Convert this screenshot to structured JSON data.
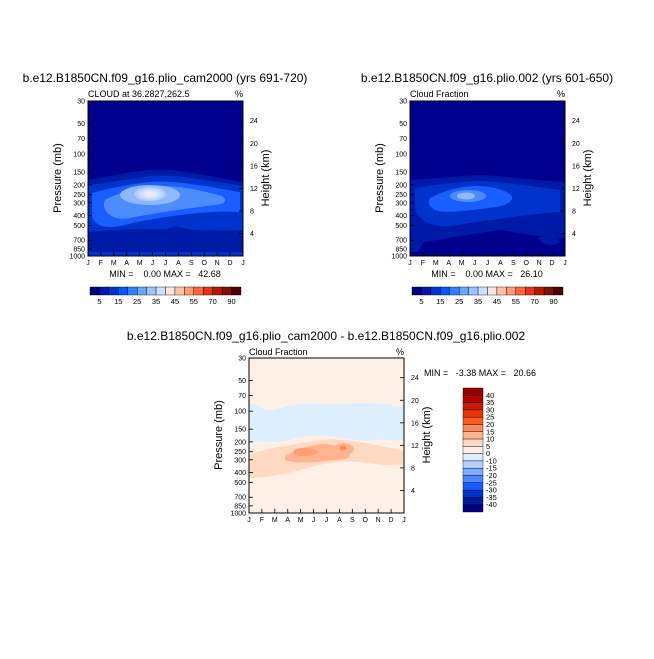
{
  "chart_data": [
    {
      "type": "heatmap",
      "title": "b.e12.B1850CN.f09_g16.plio_cam2000 (yrs 691-720)",
      "subtitle": "CLOUD at 36.2827,262.5",
      "unit": "%",
      "ylabel": "Pressure (mb)",
      "y2label": "Height (km)",
      "x_ticks": [
        "J",
        "F",
        "M",
        "A",
        "M",
        "J",
        "J",
        "A",
        "S",
        "O",
        "N",
        "D",
        "J"
      ],
      "y_ticks": [
        "30",
        "50",
        "70",
        "100",
        "150",
        "200",
        "250",
        "300",
        "400",
        "500",
        "700",
        "850",
        "1000"
      ],
      "y2_ticks": [
        "24",
        "20",
        "16",
        "12",
        "8",
        "4"
      ],
      "stats": "MIN =    0.00 MAX =   42.68",
      "min": 0.0,
      "max": 42.68,
      "peak": {
        "month": "Jul",
        "pressure_mb": 200,
        "value": 42.68
      },
      "colorbar_labels": [
        "5",
        "15",
        "25",
        "35",
        "45",
        "55",
        "70",
        "90"
      ],
      "levels": [
        5,
        10,
        15,
        20,
        25,
        30,
        35,
        40,
        45,
        50,
        55,
        60,
        70,
        80,
        90
      ],
      "colors": [
        "#00007f",
        "#0019a6",
        "#0033cc",
        "#0059ff",
        "#3380ff",
        "#66a6ff",
        "#99c2ff",
        "#cce0ff",
        "#ffe5d9",
        "#ffc2a6",
        "#ff9973",
        "#ff6640",
        "#e63319",
        "#b31a00",
        "#801000",
        "#500000"
      ]
    },
    {
      "type": "heatmap",
      "title": "b.e12.B1850CN.f09_g16.plio.002 (yrs 601-650)",
      "subtitle": "Cloud Fraction",
      "unit": "%",
      "ylabel": "Pressure (mb)",
      "y2label": "Height (km)",
      "x_ticks": [
        "J",
        "F",
        "M",
        "A",
        "M",
        "J",
        "J",
        "A",
        "S",
        "O",
        "N",
        "D",
        "J"
      ],
      "y_ticks": [
        "30",
        "50",
        "70",
        "100",
        "150",
        "200",
        "250",
        "300",
        "400",
        "500",
        "700",
        "850",
        "1000"
      ],
      "y2_ticks": [
        "24",
        "20",
        "16",
        "12",
        "8",
        "4"
      ],
      "stats": "MIN =    0.00 MAX =   26.10",
      "min": 0.0,
      "max": 26.1,
      "peak": {
        "month": "Jul",
        "pressure_mb": 200,
        "value": 26.1
      },
      "colorbar_labels": [
        "5",
        "15",
        "25",
        "35",
        "45",
        "55",
        "70",
        "90"
      ],
      "levels": [
        5,
        10,
        15,
        20,
        25,
        30,
        35,
        40,
        45,
        50,
        55,
        60,
        70,
        80,
        90
      ]
    },
    {
      "type": "heatmap",
      "title": "b.e12.B1850CN.f09_g16.plio_cam2000 - b.e12.B1850CN.f09_g16.plio.002",
      "subtitle": "Cloud Fraction",
      "unit": "%",
      "ylabel": "Pressure (mb)",
      "y2label": "Height (km)",
      "x_ticks": [
        "J",
        "F",
        "M",
        "A",
        "M",
        "J",
        "J",
        "A",
        "S",
        "O",
        "N",
        "D",
        "J"
      ],
      "y_ticks": [
        "30",
        "50",
        "70",
        "100",
        "150",
        "200",
        "250",
        "300",
        "400",
        "500",
        "700",
        "850",
        "1000"
      ],
      "y2_ticks": [
        "24",
        "20",
        "16",
        "12",
        "8",
        "4"
      ],
      "stats": "MIN =   -3.38 MAX =   20.66",
      "min": -3.38,
      "max": 20.66,
      "peak": {
        "month": "Jul",
        "pressure_mb": 200,
        "value": 20.66
      },
      "colorbar_labels": [
        "40",
        "35",
        "30",
        "25",
        "20",
        "15",
        "10",
        "5",
        "0",
        "-10",
        "-15",
        "-20",
        "-25",
        "-30",
        "-35",
        "-40"
      ],
      "colors": [
        "#990000",
        "#b30000",
        "#cc1a00",
        "#e63300",
        "#ff5a26",
        "#ff8a5c",
        "#ffb38f",
        "#ffd9c2",
        "#fff0e6",
        "#ddeeff",
        "#b3d1ff",
        "#80aaff",
        "#4d85ff",
        "#1a5aff",
        "#0033cc",
        "#001a99",
        "#00007f"
      ]
    }
  ]
}
